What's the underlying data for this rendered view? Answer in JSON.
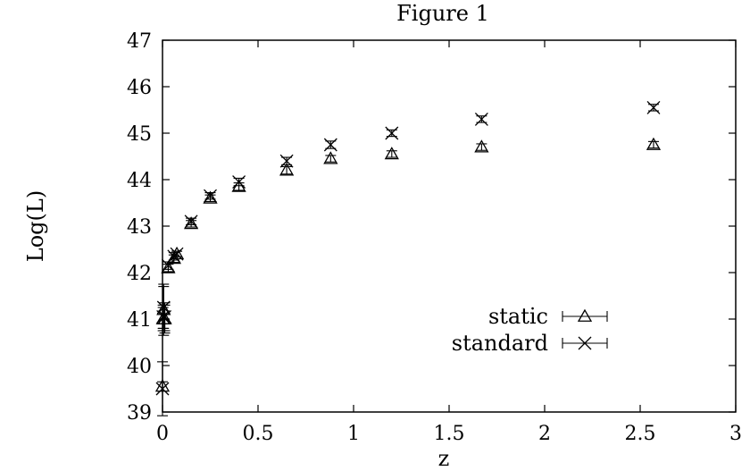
{
  "chart_data": {
    "type": "scatter",
    "title": "Figure 1",
    "xlabel": "z",
    "ylabel": "Log(L)",
    "xlim": [
      0,
      3
    ],
    "ylim": [
      39,
      47
    ],
    "xticks": [
      "0",
      "0.5",
      "1",
      "1.5",
      "2",
      "2.5",
      "3"
    ],
    "yticks": [
      "39",
      "40",
      "41",
      "42",
      "43",
      "44",
      "45",
      "46",
      "47"
    ],
    "grid": false,
    "zero_line": "dotted vertical line at z = 0",
    "legend_position": "bottom-right",
    "series": [
      {
        "name": "static",
        "marker": "triangle",
        "points": [
          {
            "x": 0.0,
            "y": 39.55,
            "err": 0.1
          },
          {
            "x": 0.003,
            "y": 41.0,
            "err": 0.25
          },
          {
            "x": 0.006,
            "y": 41.2,
            "err": 0.55
          },
          {
            "x": 0.012,
            "y": 41.0,
            "err": 0.3
          },
          {
            "x": 0.03,
            "y": 42.1,
            "err": 0.08
          },
          {
            "x": 0.06,
            "y": 42.3,
            "err": 0.08
          },
          {
            "x": 0.075,
            "y": 42.4,
            "err": 0.06
          },
          {
            "x": 0.15,
            "y": 43.05,
            "err": 0.07
          },
          {
            "x": 0.25,
            "y": 43.6,
            "err": 0.07
          },
          {
            "x": 0.4,
            "y": 43.85,
            "err": 0.08
          },
          {
            "x": 0.65,
            "y": 44.2,
            "err": 0.08
          },
          {
            "x": 0.88,
            "y": 44.45,
            "err": 0.07
          },
          {
            "x": 1.2,
            "y": 44.55,
            "err": 0.07
          },
          {
            "x": 1.67,
            "y": 44.7,
            "err": 0.07
          },
          {
            "x": 2.57,
            "y": 44.75,
            "err": 0.07
          }
        ]
      },
      {
        "name": "standard",
        "marker": "cross",
        "points": [
          {
            "x": 0.0,
            "y": 39.5,
            "err": 0.58
          },
          {
            "x": 0.003,
            "y": 41.05,
            "err": 0.25
          },
          {
            "x": 0.006,
            "y": 41.25,
            "err": 0.45
          },
          {
            "x": 0.012,
            "y": 41.05,
            "err": 0.3
          },
          {
            "x": 0.03,
            "y": 42.15,
            "err": 0.08
          },
          {
            "x": 0.06,
            "y": 42.35,
            "err": 0.08
          },
          {
            "x": 0.075,
            "y": 42.4,
            "err": 0.06
          },
          {
            "x": 0.15,
            "y": 43.1,
            "err": 0.07
          },
          {
            "x": 0.25,
            "y": 43.65,
            "err": 0.07
          },
          {
            "x": 0.4,
            "y": 43.95,
            "err": 0.08
          },
          {
            "x": 0.65,
            "y": 44.4,
            "err": 0.08
          },
          {
            "x": 0.88,
            "y": 44.75,
            "err": 0.08
          },
          {
            "x": 1.2,
            "y": 45.0,
            "err": 0.07
          },
          {
            "x": 1.67,
            "y": 45.3,
            "err": 0.07
          },
          {
            "x": 2.57,
            "y": 45.55,
            "err": 0.07
          }
        ]
      }
    ]
  }
}
